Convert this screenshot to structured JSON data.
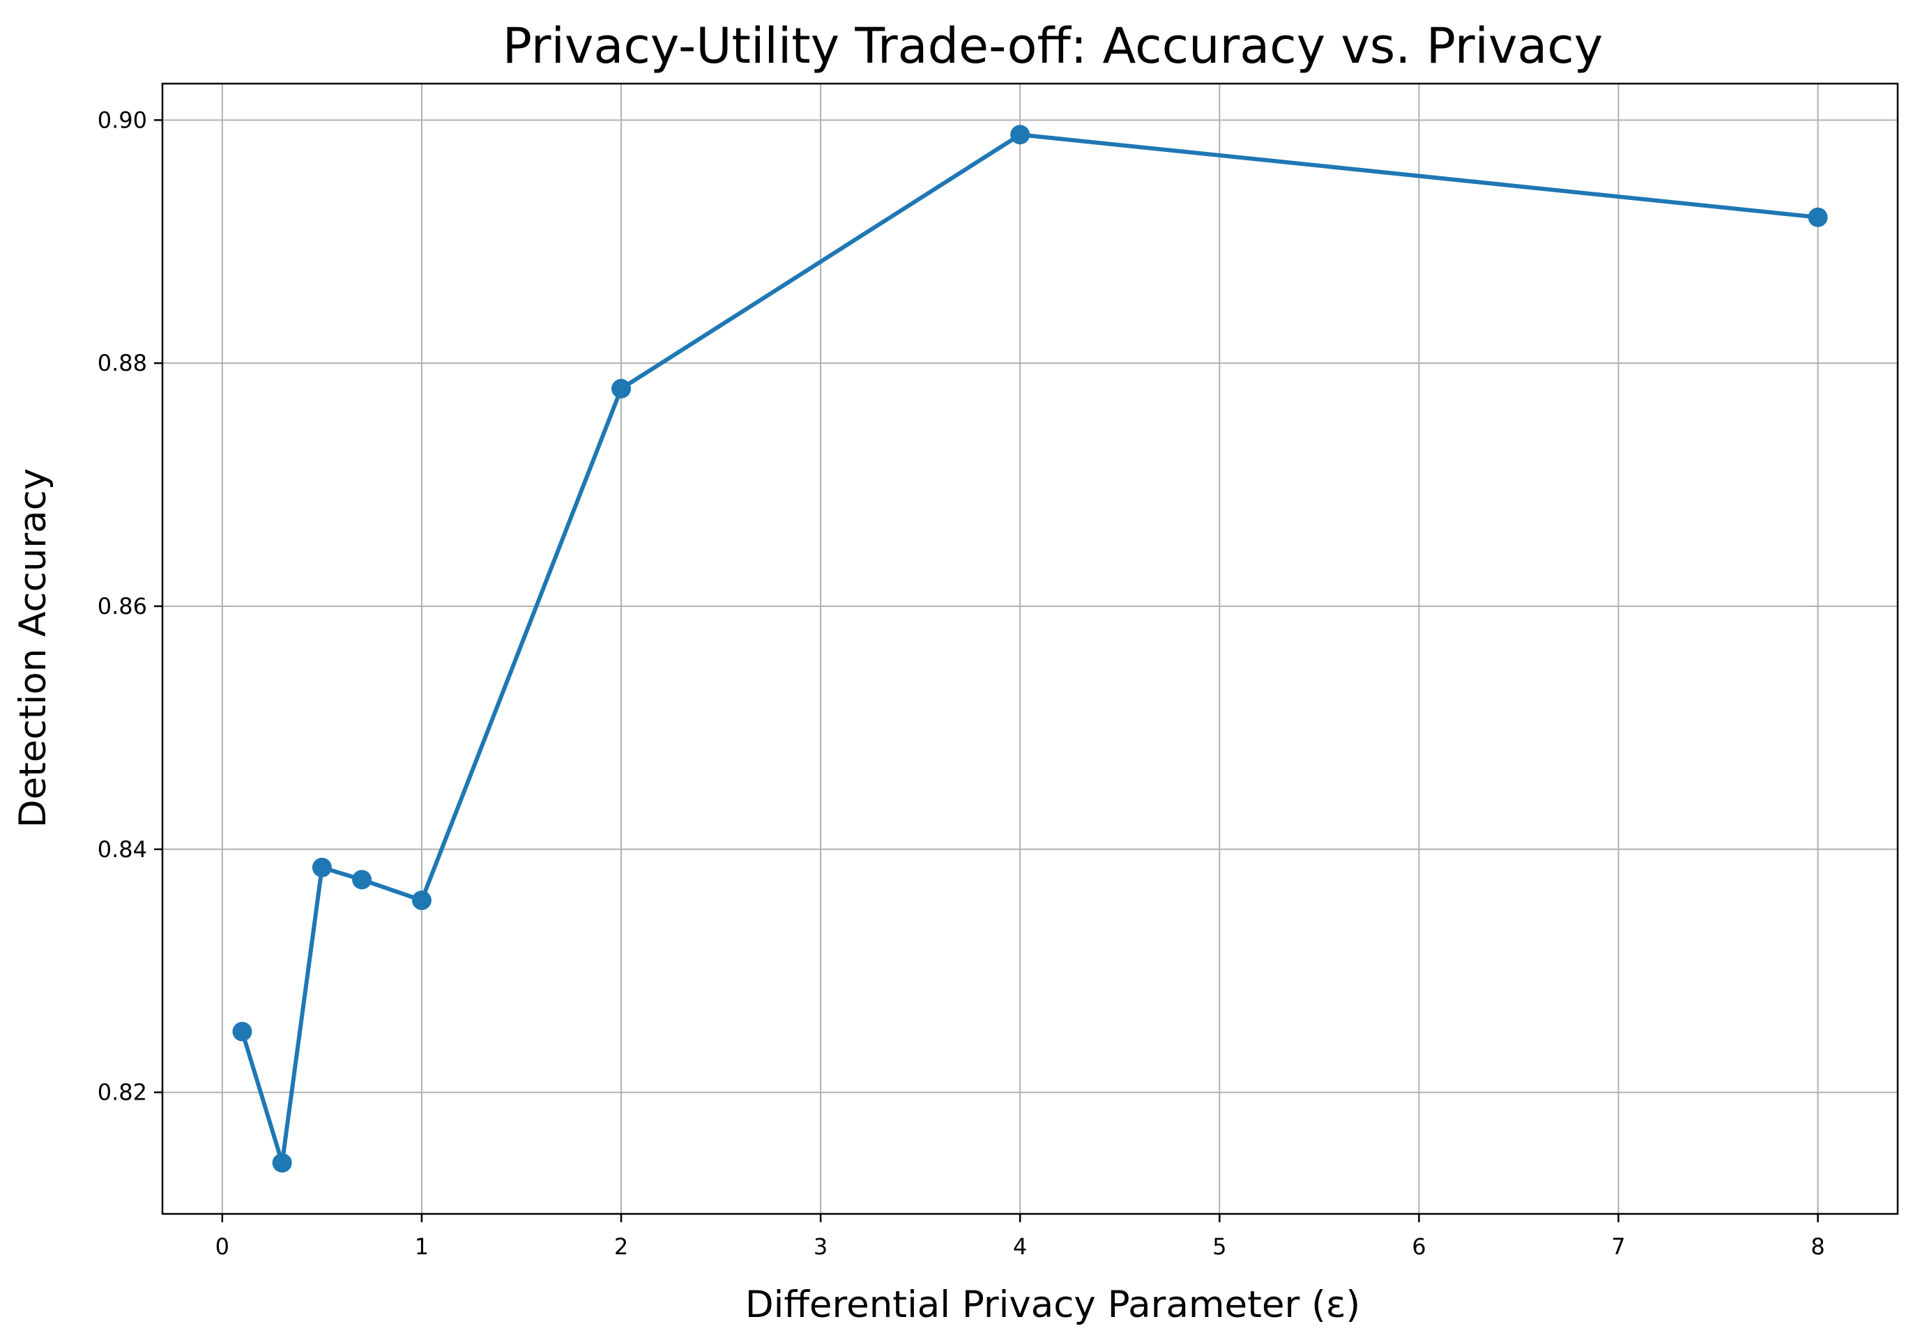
{
  "chart_data": {
    "type": "line",
    "title": "Privacy-Utility Trade-off: Accuracy vs. Privacy",
    "xlabel": "Differential Privacy Parameter (ε)",
    "ylabel": "Detection Accuracy",
    "x_ticks": [
      "0",
      "1",
      "2",
      "3",
      "4",
      "5",
      "6",
      "7",
      "8"
    ],
    "y_ticks": [
      "0.82",
      "0.84",
      "0.86",
      "0.88",
      "0.90"
    ],
    "xlim": [
      -0.3,
      8.4
    ],
    "ylim": [
      0.81,
      0.903
    ],
    "grid": true,
    "series": [
      {
        "color": "#1f77b4",
        "marker": "circle",
        "x": [
          0.1,
          0.3,
          0.5,
          0.7,
          1,
          2,
          4,
          8
        ],
        "y": [
          0.825,
          0.8142,
          0.8385,
          0.8375,
          0.8358,
          0.8779,
          0.8988,
          0.892
        ]
      }
    ]
  },
  "colors": {
    "line": "#1f77b4",
    "grid": "#b0b0b0",
    "axes": "#000000",
    "background": "#ffffff"
  }
}
